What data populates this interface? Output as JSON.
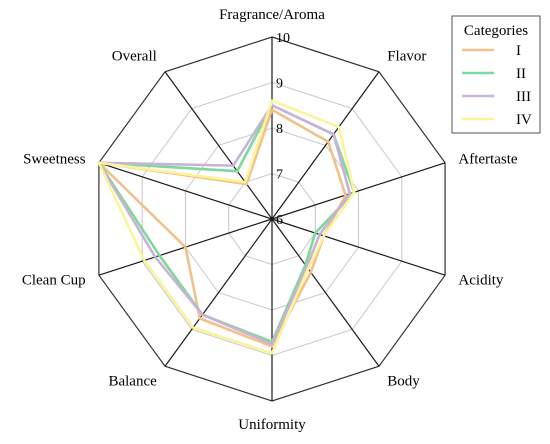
{
  "chart_data": {
    "type": "radar",
    "axes": [
      "Fragrance/Aroma",
      "Flavor",
      "Aftertaste",
      "Acidity",
      "Body",
      "Uniformity",
      "Balance",
      "Clean Cup",
      "Sweetness",
      "Overall"
    ],
    "rlim": [
      6,
      10
    ],
    "ticks": [
      6,
      7,
      8,
      9,
      10
    ],
    "grid": true,
    "legend": {
      "title": "Categories",
      "placement": "top-right"
    },
    "series": [
      {
        "name": "I",
        "color": "#f2c08a",
        "values": [
          8.4,
          8.1,
          7.7,
          7.2,
          7.45,
          8.8,
          8.7,
          8.0,
          10.0,
          6.95
        ]
      },
      {
        "name": "II",
        "color": "#7fd89a",
        "values": [
          8.5,
          8.3,
          7.9,
          7.0,
          7.25,
          8.7,
          8.6,
          8.6,
          10.0,
          7.3
        ]
      },
      {
        "name": "III",
        "color": "#c8b2d8",
        "values": [
          8.5,
          8.3,
          7.8,
          7.1,
          7.3,
          8.75,
          8.6,
          8.7,
          10.0,
          7.45
        ]
      },
      {
        "name": "IV",
        "color": "#fbf49a",
        "values": [
          8.6,
          8.5,
          7.9,
          7.2,
          7.35,
          8.95,
          8.95,
          8.95,
          10.0,
          7.0
        ]
      }
    ]
  }
}
